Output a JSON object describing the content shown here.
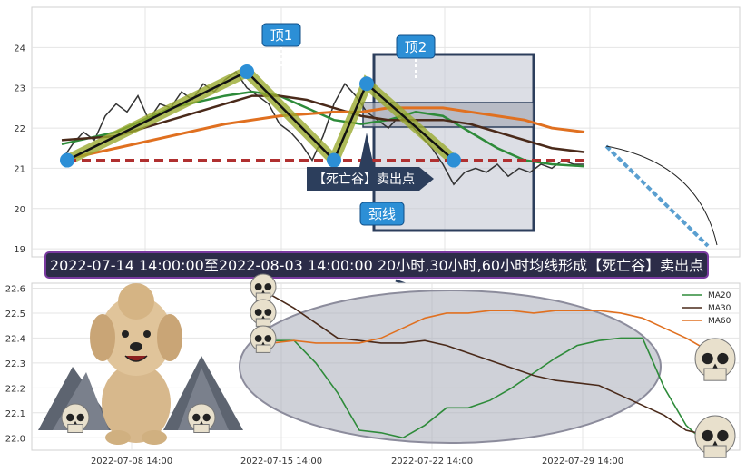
{
  "banner": "2022-07-14 14:00:00至2022-08-03 14:00:00 20小时,30小时,60小时均线形成【死亡谷】卖出点",
  "labels": {
    "top1": "顶1",
    "top2": "顶2",
    "neckline": "颈线",
    "signal": "【死亡谷】卖出点"
  },
  "colors": {
    "price": "#333333",
    "ma20": "#2e8b3a",
    "ma30": "#4a2a1a",
    "ma60": "#e07020",
    "marker": "#2c8fd6",
    "neckline": "#b03030",
    "highlight": "#9aaa30",
    "box": "#2c3e5c",
    "banner_bg": "#2c2c48",
    "banner_border": "#7a3aa0"
  },
  "chart_data": [
    {
      "type": "line",
      "ylim": [
        18.8,
        25.0
      ],
      "yticks": [
        19,
        20,
        21,
        22,
        23,
        24
      ],
      "xlim": [
        0,
        100
      ],
      "series": [
        {
          "key": "price",
          "x": [
            0,
            2,
            4,
            6,
            8,
            10,
            12,
            14,
            16,
            18,
            20,
            22,
            24,
            26,
            28,
            30,
            32,
            34,
            36,
            38,
            40,
            42,
            44,
            46,
            48,
            50,
            52,
            54,
            56,
            58,
            60,
            62,
            64,
            66,
            68,
            70,
            72,
            74,
            76,
            78,
            80,
            82,
            84,
            86,
            88,
            90,
            92,
            94,
            96
          ],
          "y": [
            21.2,
            21.6,
            21.9,
            21.7,
            22.3,
            22.6,
            22.4,
            22.8,
            22.2,
            22.6,
            22.5,
            22.9,
            22.7,
            23.1,
            22.9,
            23.2,
            23.4,
            23.0,
            22.8,
            22.6,
            22.1,
            21.9,
            21.6,
            21.2,
            21.8,
            22.6,
            23.1,
            22.8,
            22.4,
            22.2,
            22.0,
            22.3,
            22.1,
            21.8,
            21.5,
            21.1,
            20.6,
            20.9,
            21.0,
            20.9,
            21.1,
            20.8,
            21.0,
            20.9,
            21.1,
            21.0,
            21.2,
            21.1,
            21.1
          ]
        },
        {
          "key": "ma20",
          "x": [
            0,
            10,
            20,
            30,
            35,
            40,
            45,
            50,
            55,
            60,
            65,
            70,
            75,
            80,
            85,
            90,
            96
          ],
          "y": [
            21.6,
            21.9,
            22.5,
            22.8,
            22.9,
            22.8,
            22.5,
            22.2,
            22.1,
            22.2,
            22.4,
            22.3,
            21.9,
            21.5,
            21.2,
            21.1,
            21.05
          ]
        },
        {
          "key": "ma30",
          "x": [
            0,
            10,
            20,
            30,
            35,
            40,
            45,
            50,
            55,
            60,
            65,
            70,
            75,
            80,
            85,
            90,
            96
          ],
          "y": [
            21.7,
            21.8,
            22.2,
            22.6,
            22.8,
            22.8,
            22.7,
            22.5,
            22.3,
            22.2,
            22.2,
            22.2,
            22.1,
            21.9,
            21.7,
            21.5,
            21.4
          ]
        },
        {
          "key": "ma60",
          "x": [
            0,
            10,
            20,
            30,
            40,
            50,
            55,
            60,
            65,
            70,
            75,
            80,
            85,
            90,
            96
          ],
          "y": [
            21.2,
            21.5,
            21.8,
            22.1,
            22.3,
            22.4,
            22.4,
            22.5,
            22.5,
            22.5,
            22.4,
            22.3,
            22.2,
            22.0,
            21.9
          ]
        }
      ],
      "markers": [
        {
          "x": 1,
          "y": 21.2
        },
        {
          "x": 34,
          "y": 23.4
        },
        {
          "x": 50,
          "y": 21.2
        },
        {
          "x": 56,
          "y": 23.1
        },
        {
          "x": 72,
          "y": 21.2
        }
      ],
      "neckline_y": 21.2
    },
    {
      "type": "line",
      "ylim": [
        21.95,
        22.62
      ],
      "yticks": [
        22.0,
        22.1,
        22.2,
        22.3,
        22.4,
        22.5,
        22.6
      ],
      "xticks": [
        "2022-07-08 14:00",
        "2022-07-15 14:00",
        "2022-07-22 14:00",
        "2022-07-29 14:00"
      ],
      "series": [
        {
          "name": "MA20",
          "key": "ma20",
          "x": [
            0,
            5,
            10,
            15,
            20,
            25,
            30,
            35,
            40,
            45,
            50,
            55,
            60,
            65,
            70,
            75,
            80,
            85,
            90,
            95,
            100
          ],
          "y": [
            22.39,
            22.39,
            22.3,
            22.18,
            22.03,
            22.02,
            22.0,
            22.05,
            22.12,
            22.12,
            22.15,
            22.2,
            22.26,
            22.32,
            22.37,
            22.39,
            22.4,
            22.4,
            22.2,
            22.05,
            21.97
          ]
        },
        {
          "name": "MA30",
          "key": "ma30",
          "x": [
            0,
            5,
            10,
            15,
            20,
            25,
            30,
            35,
            40,
            45,
            50,
            55,
            60,
            65,
            70,
            75,
            80,
            85,
            90,
            95,
            100
          ],
          "y": [
            22.57,
            22.52,
            22.46,
            22.4,
            22.39,
            22.38,
            22.38,
            22.39,
            22.37,
            22.34,
            22.31,
            22.28,
            22.25,
            22.23,
            22.22,
            22.21,
            22.17,
            22.13,
            22.09,
            22.03,
            22.01
          ]
        },
        {
          "name": "MA60",
          "key": "ma60",
          "x": [
            0,
            5,
            10,
            15,
            20,
            25,
            30,
            35,
            40,
            45,
            50,
            55,
            60,
            65,
            70,
            75,
            80,
            85,
            90,
            95,
            100
          ],
          "y": [
            22.38,
            22.39,
            22.38,
            22.38,
            22.38,
            22.4,
            22.44,
            22.48,
            22.5,
            22.5,
            22.51,
            22.51,
            22.5,
            22.51,
            22.51,
            22.51,
            22.5,
            22.48,
            22.44,
            22.4,
            22.35
          ]
        }
      ]
    }
  ]
}
